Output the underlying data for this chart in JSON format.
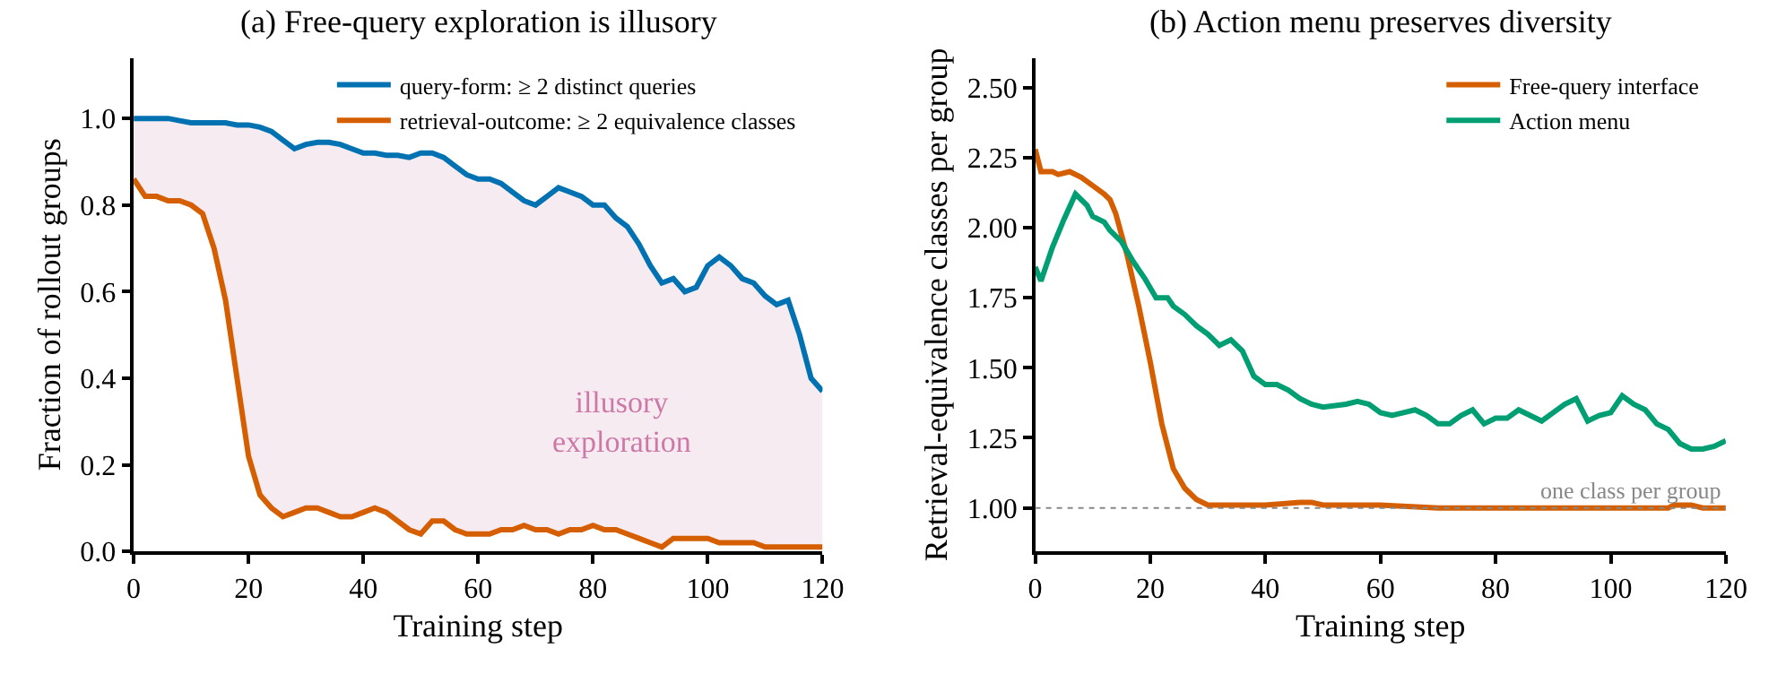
{
  "chart_data": [
    {
      "type": "line",
      "title": "(a) Free-query exploration is illusory",
      "xlabel": "Training step",
      "ylabel": "Fraction of rollout groups",
      "x": [
        0,
        2,
        4,
        6,
        8,
        10,
        12,
        14,
        16,
        18,
        20,
        22,
        24,
        26,
        28,
        30,
        32,
        34,
        36,
        38,
        40,
        42,
        44,
        46,
        48,
        50,
        52,
        54,
        56,
        58,
        60,
        62,
        64,
        66,
        68,
        70,
        72,
        74,
        76,
        78,
        80,
        82,
        84,
        86,
        88,
        90,
        92,
        94,
        96,
        98,
        100,
        102,
        104,
        106,
        108,
        110,
        112,
        114,
        116,
        118,
        120
      ],
      "series": [
        {
          "name": "query-form: ≥ 2 distinct queries",
          "color": "#0072b2",
          "values": [
            1.0,
            1.0,
            1.0,
            1.0,
            0.995,
            0.99,
            0.99,
            0.99,
            0.99,
            0.985,
            0.985,
            0.98,
            0.97,
            0.95,
            0.93,
            0.94,
            0.945,
            0.945,
            0.94,
            0.93,
            0.92,
            0.92,
            0.915,
            0.915,
            0.91,
            0.92,
            0.92,
            0.91,
            0.89,
            0.87,
            0.86,
            0.86,
            0.85,
            0.83,
            0.81,
            0.8,
            0.82,
            0.84,
            0.83,
            0.82,
            0.8,
            0.8,
            0.77,
            0.75,
            0.71,
            0.66,
            0.62,
            0.63,
            0.6,
            0.61,
            0.66,
            0.68,
            0.66,
            0.63,
            0.62,
            0.59,
            0.57,
            0.58,
            0.5,
            0.4,
            0.37
          ],
          "lower": [
            0.86,
            0.82,
            0.82,
            0.81,
            0.81,
            0.8,
            0.78,
            0.7,
            0.58,
            0.4,
            0.22,
            0.13,
            0.1,
            0.08,
            0.09,
            0.1,
            0.1,
            0.09,
            0.08,
            0.08,
            0.09,
            0.1,
            0.09,
            0.07,
            0.05,
            0.04,
            0.07,
            0.07,
            0.05,
            0.04,
            0.04,
            0.04,
            0.05,
            0.05,
            0.06,
            0.05,
            0.05,
            0.04,
            0.05,
            0.05,
            0.06,
            0.05,
            0.05,
            0.04,
            0.03,
            0.02,
            0.01,
            0.03,
            0.03,
            0.03,
            0.03,
            0.02,
            0.02,
            0.02,
            0.02,
            0.01,
            0.01,
            0.01,
            0.01,
            0.01,
            0.01
          ],
          "upper": [
            1.0,
            1.0,
            1.0,
            1.0,
            0.995,
            0.99,
            0.99,
            0.99,
            0.99,
            0.985,
            0.985,
            0.98,
            0.97,
            0.95,
            0.93,
            0.94,
            0.945,
            0.945,
            0.94,
            0.93,
            0.92,
            0.92,
            0.915,
            0.915,
            0.91,
            0.92,
            0.92,
            0.91,
            0.89,
            0.87,
            0.86,
            0.86,
            0.85,
            0.83,
            0.81,
            0.8,
            0.82,
            0.84,
            0.83,
            0.82,
            0.8,
            0.8,
            0.77,
            0.75,
            0.71,
            0.66,
            0.62,
            0.63,
            0.6,
            0.61,
            0.66,
            0.68,
            0.66,
            0.63,
            0.62,
            0.59,
            0.57,
            0.58,
            0.5,
            0.4,
            0.37
          ]
        },
        {
          "name": "retrieval-outcome: ≥ 2 equivalence classes",
          "color": "#d55e00",
          "values": [
            0.86,
            0.82,
            0.82,
            0.81,
            0.81,
            0.8,
            0.78,
            0.7,
            0.58,
            0.4,
            0.22,
            0.13,
            0.1,
            0.08,
            0.09,
            0.1,
            0.1,
            0.09,
            0.08,
            0.08,
            0.09,
            0.1,
            0.09,
            0.07,
            0.05,
            0.04,
            0.07,
            0.07,
            0.05,
            0.04,
            0.04,
            0.04,
            0.05,
            0.05,
            0.06,
            0.05,
            0.05,
            0.04,
            0.05,
            0.05,
            0.06,
            0.05,
            0.05,
            0.04,
            0.03,
            0.02,
            0.01,
            0.03,
            0.03,
            0.03,
            0.03,
            0.02,
            0.02,
            0.02,
            0.02,
            0.01,
            0.01,
            0.01,
            0.01,
            0.01,
            0.01
          ]
        }
      ],
      "annotations": [
        "illusory\nexploration"
      ],
      "xlim": [
        0,
        120
      ],
      "xticks": [
        0,
        20,
        40,
        60,
        80,
        100,
        120
      ],
      "ylim": [
        0,
        1.14
      ],
      "yticks": [
        {
          "value": 0,
          "label": "0.0"
        },
        {
          "value": 0.2,
          "label": "0.2"
        },
        {
          "value": 0.4,
          "label": "0.4"
        },
        {
          "value": 0.6,
          "label": "0.6"
        },
        {
          "value": 0.8,
          "label": "0.8"
        },
        {
          "value": 1.0,
          "label": "1.0"
        }
      ],
      "legend": "top right",
      "marker": "none",
      "line_style": "solid"
    },
    {
      "type": "line",
      "title": "(b) Action menu preserves diversity",
      "xlabel": "Training step",
      "ylabel": "Retrieval-equivalence classes per group",
      "series": [
        {
          "name": "Free-query interface",
          "color": "#d55e00",
          "x": [
            0,
            1,
            3,
            4,
            6,
            8,
            10,
            12,
            13,
            14,
            16,
            18,
            20,
            22,
            24,
            26,
            28,
            30,
            34,
            40,
            46,
            48,
            50,
            56,
            60,
            70,
            80,
            90,
            100,
            110,
            111,
            114,
            116,
            120
          ],
          "values": [
            2.28,
            2.2,
            2.2,
            2.19,
            2.2,
            2.18,
            2.15,
            2.12,
            2.1,
            2.05,
            1.9,
            1.72,
            1.52,
            1.3,
            1.14,
            1.07,
            1.03,
            1.01,
            1.01,
            1.01,
            1.02,
            1.02,
            1.01,
            1.01,
            1.01,
            1.0,
            1.0,
            1.0,
            1.0,
            1.0,
            1.01,
            1.01,
            1.0,
            1.0
          ]
        },
        {
          "name": "Action menu",
          "color": "#009e73",
          "x": [
            0,
            1,
            3,
            5,
            7,
            9,
            10,
            12,
            13,
            15,
            17,
            19,
            21,
            23,
            24,
            26,
            28,
            30,
            32,
            34,
            36,
            38,
            40,
            42,
            44,
            46,
            48,
            50,
            54,
            56,
            58,
            60,
            62,
            64,
            66,
            68,
            70,
            72,
            74,
            76,
            78,
            80,
            82,
            84,
            86,
            88,
            90,
            92,
            94,
            96,
            98,
            100,
            102,
            104,
            106,
            108,
            110,
            112,
            114,
            116,
            118,
            120
          ],
          "values": [
            1.86,
            1.81,
            1.93,
            2.03,
            2.12,
            2.08,
            2.04,
            2.02,
            1.99,
            1.95,
            1.88,
            1.82,
            1.75,
            1.75,
            1.72,
            1.69,
            1.65,
            1.62,
            1.58,
            1.6,
            1.56,
            1.47,
            1.44,
            1.44,
            1.42,
            1.39,
            1.37,
            1.36,
            1.37,
            1.38,
            1.37,
            1.34,
            1.33,
            1.34,
            1.35,
            1.33,
            1.3,
            1.3,
            1.33,
            1.35,
            1.3,
            1.32,
            1.32,
            1.35,
            1.33,
            1.31,
            1.34,
            1.37,
            1.39,
            1.31,
            1.33,
            1.34,
            1.4,
            1.37,
            1.35,
            1.3,
            1.28,
            1.23,
            1.21,
            1.21,
            1.22,
            1.24
          ]
        }
      ],
      "ref_lines": [
        {
          "axis": "y",
          "value": 1.0,
          "label": "one class per group",
          "color": "#888888",
          "line_style": "dotted"
        }
      ],
      "xlim": [
        0,
        120
      ],
      "xticks": [
        0,
        20,
        40,
        60,
        80,
        100,
        120
      ],
      "ylim": [
        0.845,
        2.606
      ],
      "yticks": [
        {
          "value": 1.0,
          "label": "1.00"
        },
        {
          "value": 1.25,
          "label": "1.25"
        },
        {
          "value": 1.5,
          "label": "1.50"
        },
        {
          "value": 1.75,
          "label": "1.75"
        },
        {
          "value": 2.0,
          "label": "2.00"
        },
        {
          "value": 2.25,
          "label": "2.25"
        },
        {
          "value": 2.5,
          "label": "2.50"
        }
      ],
      "legend": "top right",
      "marker": "none",
      "line_style": "solid"
    }
  ]
}
